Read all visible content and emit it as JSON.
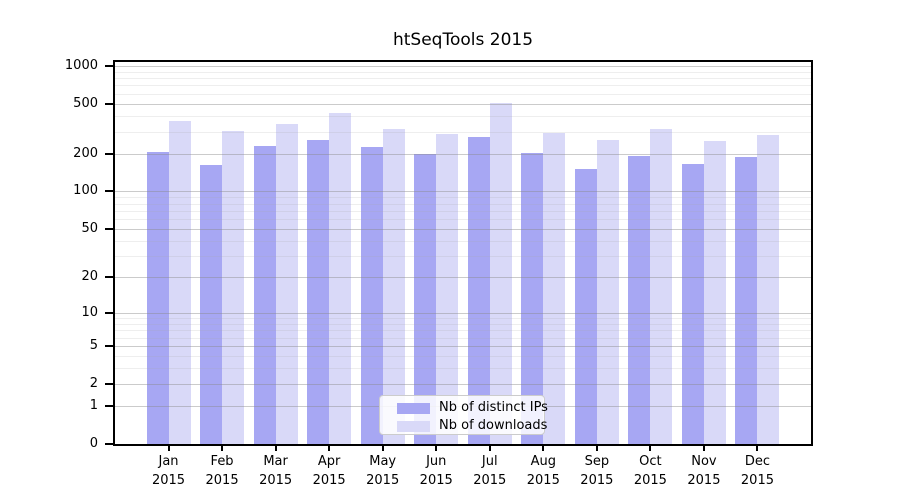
{
  "chart_data": {
    "type": "bar",
    "title": "htSeqTools 2015",
    "year": "2015",
    "categories": [
      "Jan",
      "Feb",
      "Mar",
      "Apr",
      "May",
      "Jun",
      "Jul",
      "Aug",
      "Sep",
      "Oct",
      "Nov",
      "Dec"
    ],
    "series": [
      {
        "name": "Nb of distinct IPs",
        "color": "#a7a7f3",
        "values": [
          207,
          163,
          233,
          260,
          228,
          201,
          274,
          202,
          152,
          193,
          166,
          187
        ]
      },
      {
        "name": "Nb of downloads",
        "color": "#d9d9f8",
        "values": [
          366,
          305,
          347,
          422,
          318,
          287,
          506,
          292,
          256,
          318,
          254,
          282
        ]
      }
    ],
    "yscale": "log10(1+value)",
    "ylim": [
      0,
      1000
    ],
    "yticks": [
      0,
      1,
      2,
      5,
      10,
      20,
      50,
      100,
      200,
      500,
      1000
    ],
    "yticks_minor": [
      3,
      4,
      6,
      7,
      8,
      9,
      30,
      40,
      60,
      70,
      80,
      90,
      300,
      400,
      600,
      700,
      800,
      900
    ],
    "grid": "horizontal, major and minor, drawn over bars",
    "legend_position": "lower center",
    "xlabel": "",
    "ylabel": ""
  },
  "colors": {
    "background": "#ffffff",
    "axis": "#000000",
    "grid_major": "#cfcfcf",
    "grid_minor": "#ececec",
    "legend_border": "#cccccc"
  }
}
